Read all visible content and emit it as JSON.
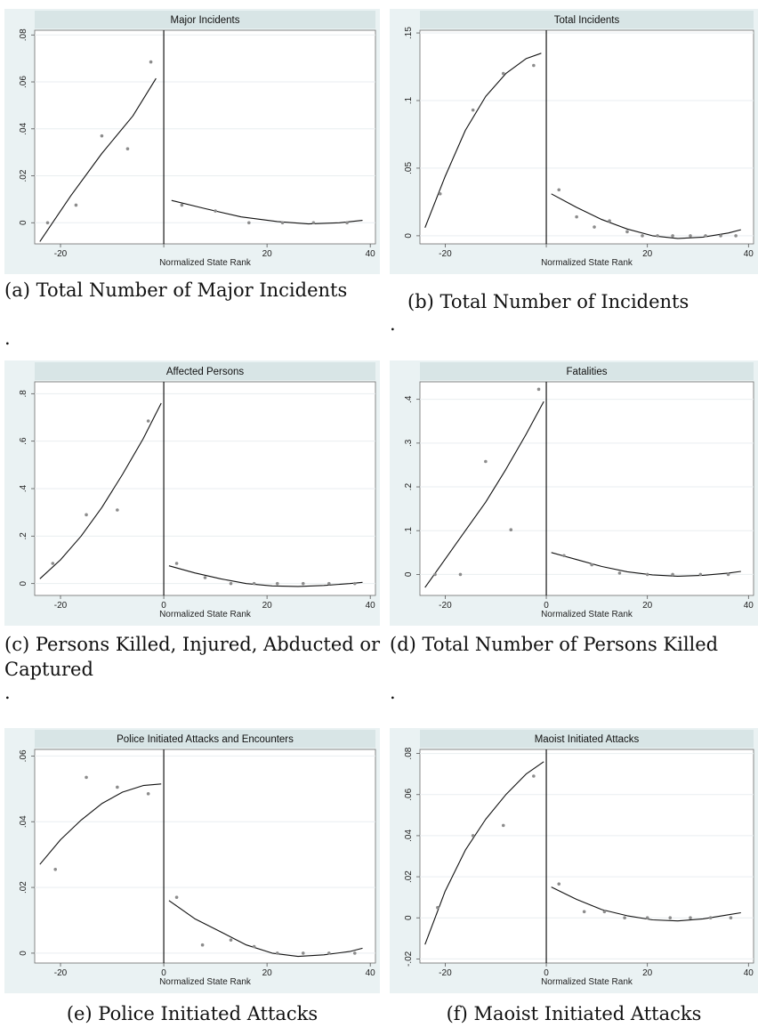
{
  "chart_data": [
    {
      "type": "scatter",
      "title": "Major Incidents",
      "xlabel": "Normalized State Rank",
      "ylabel": "",
      "caption": "(a) Total Number of Major Incidents",
      "note": ".",
      "xlim": [
        -25,
        41
      ],
      "ylim": [
        -0.009,
        0.082
      ],
      "xticks": [
        -20,
        0,
        20,
        40
      ],
      "xtick_labels": [
        "-20",
        "",
        "20",
        "40"
      ],
      "yticks": [
        0,
        0.02,
        0.04,
        0.06,
        0.08
      ],
      "ytick_labels": [
        "0",
        ".02",
        ".04",
        ".06",
        ".08"
      ],
      "cutoff": 0,
      "points": {
        "x": [
          -22.5,
          -17,
          -12,
          -7,
          -2.5,
          3.5,
          10,
          16.5,
          23,
          29,
          35.5
        ],
        "y": [
          0.0,
          0.0075,
          0.037,
          0.0315,
          0.0685,
          0.0075,
          0.005,
          0.0,
          0.0,
          0.0,
          0.0
        ]
      },
      "fit_left": {
        "x": [
          -24,
          -18,
          -12,
          -6,
          -1.5
        ],
        "y": [
          -0.008,
          0.0115,
          0.0295,
          0.0455,
          0.0615
        ]
      },
      "fit_right": {
        "x": [
          1.5,
          8,
          15,
          22,
          28,
          34,
          38.5
        ],
        "y": [
          0.0095,
          0.006,
          0.0025,
          0.0005,
          -0.0005,
          0.0,
          0.001
        ]
      }
    },
    {
      "type": "scatter",
      "title": "Total Incidents",
      "xlabel": "Normalized State Rank",
      "ylabel": "",
      "caption": "(b) Total Number of Incidents",
      "note": ".",
      "xlim": [
        -25,
        41
      ],
      "ylim": [
        -0.006,
        0.152
      ],
      "xticks": [
        -20,
        0,
        20,
        40
      ],
      "xtick_labels": [
        "-20",
        "",
        "20",
        "40"
      ],
      "yticks": [
        0,
        0.05,
        0.1,
        0.15
      ],
      "ytick_labels": [
        "0",
        ".05",
        ".1",
        ".15"
      ],
      "cutoff": 0,
      "points": {
        "x": [
          -21,
          -14.5,
          -8.5,
          -2.5,
          2.5,
          6,
          9.5,
          12.5,
          16,
          19,
          22,
          25,
          28.5,
          31.5,
          34.5,
          37.5
        ],
        "y": [
          0.031,
          0.093,
          0.12,
          0.126,
          0.034,
          0.014,
          0.0065,
          0.011,
          0.003,
          0.0,
          0.0,
          0.0,
          0.0,
          0.0,
          0.0,
          0.0
        ]
      },
      "fit_left": {
        "x": [
          -24,
          -20,
          -16,
          -12,
          -8,
          -4,
          -1
        ],
        "y": [
          0.006,
          0.044,
          0.078,
          0.103,
          0.12,
          0.131,
          0.135
        ]
      },
      "fit_right": {
        "x": [
          1,
          6,
          11,
          16,
          21,
          26,
          31,
          36,
          38.5
        ],
        "y": [
          0.031,
          0.021,
          0.012,
          0.005,
          0.0,
          -0.002,
          -0.001,
          0.002,
          0.0045
        ]
      }
    },
    {
      "type": "scatter",
      "title": "Affected Persons",
      "xlabel": "Normalized State Rank",
      "ylabel": "",
      "caption": "(c) Persons Killed, Injured, Abducted or Captured",
      "note": ".",
      "xlim": [
        -25,
        41
      ],
      "ylim": [
        -0.05,
        0.85
      ],
      "xticks": [
        -20,
        0,
        20,
        40
      ],
      "xtick_labels": [
        "-20",
        "0",
        "20",
        "40"
      ],
      "yticks": [
        0,
        0.2,
        0.4,
        0.6,
        0.8
      ],
      "ytick_labels": [
        "0",
        ".2",
        ".4",
        ".6",
        ".8"
      ],
      "cutoff": 0,
      "points": {
        "x": [
          -21.5,
          -15,
          -9,
          -3,
          2.5,
          8,
          13,
          17.5,
          22,
          27,
          32,
          37
        ],
        "y": [
          0.085,
          0.29,
          0.31,
          0.685,
          0.085,
          0.025,
          0.0,
          0.0,
          0.0,
          0.0,
          0.0,
          0.0
        ]
      },
      "fit_left": {
        "x": [
          -24,
          -20,
          -16,
          -12,
          -8,
          -4,
          -0.5
        ],
        "y": [
          0.02,
          0.1,
          0.2,
          0.32,
          0.46,
          0.61,
          0.76
        ]
      },
      "fit_right": {
        "x": [
          1,
          6,
          11,
          16,
          21,
          26,
          31,
          36,
          38.5
        ],
        "y": [
          0.075,
          0.045,
          0.02,
          0.0,
          -0.01,
          -0.012,
          -0.008,
          0.0,
          0.005
        ]
      }
    },
    {
      "type": "scatter",
      "title": "Fatalities",
      "xlabel": "Normalized State Rank",
      "ylabel": "",
      "caption": "(d) Total Number of Persons Killed",
      "note": ".",
      "xlim": [
        -25,
        41
      ],
      "ylim": [
        -0.048,
        0.44
      ],
      "xticks": [
        -20,
        0,
        20,
        40
      ],
      "xtick_labels": [
        "-20",
        "0",
        "20",
        "40"
      ],
      "yticks": [
        0,
        0.1,
        0.2,
        0.3,
        0.4
      ],
      "ytick_labels": [
        "0",
        ".1",
        ".2",
        ".3",
        ".4"
      ],
      "cutoff": 0,
      "points": {
        "x": [
          -22,
          -17,
          -12,
          -7,
          -1.5,
          3.5,
          9,
          14.5,
          20,
          25,
          30.5,
          36
        ],
        "y": [
          0.0,
          0.0,
          0.258,
          0.102,
          0.423,
          0.043,
          0.022,
          0.003,
          0.0,
          0.0,
          0.0,
          0.0
        ]
      },
      "fit_left": {
        "x": [
          -24,
          -20,
          -16,
          -12,
          -8,
          -4,
          -0.5
        ],
        "y": [
          -0.03,
          0.035,
          0.1,
          0.165,
          0.24,
          0.32,
          0.395
        ]
      },
      "fit_right": {
        "x": [
          1,
          6,
          11,
          16,
          21,
          26,
          31,
          36,
          38.5
        ],
        "y": [
          0.05,
          0.034,
          0.018,
          0.006,
          -0.001,
          -0.004,
          -0.002,
          0.003,
          0.007
        ]
      }
    },
    {
      "type": "scatter",
      "title": "Police Initiated Attacks and Encounters",
      "xlabel": "Normalized State Rank",
      "ylabel": "",
      "caption": "(e) Police Initiated Attacks",
      "xlim": [
        -25,
        41
      ],
      "ylim": [
        -0.003,
        0.062
      ],
      "xticks": [
        -20,
        0,
        20,
        40
      ],
      "xtick_labels": [
        "-20",
        "0",
        "20",
        "40"
      ],
      "yticks": [
        0,
        0.02,
        0.04,
        0.06
      ],
      "ytick_labels": [
        "0",
        ".02",
        ".04",
        ".06"
      ],
      "cutoff": 0,
      "points": {
        "x": [
          -21,
          -15,
          -9,
          -3,
          2.5,
          7.5,
          13,
          17.5,
          22,
          27,
          32,
          37
        ],
        "y": [
          0.0255,
          0.0535,
          0.0505,
          0.0485,
          0.017,
          0.0025,
          0.004,
          0.002,
          0.0,
          0.0,
          0.0,
          0.0
        ]
      },
      "fit_left": {
        "x": [
          -24,
          -20,
          -16,
          -12,
          -8,
          -4,
          -0.5
        ],
        "y": [
          0.027,
          0.0345,
          0.0405,
          0.0455,
          0.049,
          0.051,
          0.0515
        ]
      },
      "fit_right": {
        "x": [
          1,
          6,
          11,
          16,
          21,
          26,
          31,
          36,
          38.5
        ],
        "y": [
          0.016,
          0.0105,
          0.0065,
          0.0025,
          0.0,
          -0.001,
          -0.0005,
          0.0005,
          0.0015
        ]
      }
    },
    {
      "type": "scatter",
      "title": "Maoist Initiated Attacks",
      "xlabel": "Normalized State Rank",
      "ylabel": "",
      "caption": "(f) Maoist Initiated Attacks",
      "xlim": [
        -25,
        41
      ],
      "ylim": [
        -0.022,
        0.082
      ],
      "xticks": [
        -20,
        0,
        20,
        40
      ],
      "xtick_labels": [
        "-20",
        "0",
        "20",
        "40"
      ],
      "yticks": [
        -0.02,
        0,
        0.02,
        0.04,
        0.06,
        0.08
      ],
      "ytick_labels": [
        "-.02",
        "0",
        ".02",
        ".04",
        ".06",
        ".08"
      ],
      "cutoff": 0,
      "points": {
        "x": [
          -21.5,
          -14.5,
          -8.5,
          -2.5,
          2.5,
          7.5,
          11.5,
          15.5,
          20,
          24.5,
          28.5,
          32.5,
          36.5
        ],
        "y": [
          0.005,
          0.04,
          0.045,
          0.069,
          0.0165,
          0.003,
          0.003,
          0.0,
          0.0,
          0.0,
          0.0,
          0.0,
          0.0
        ]
      },
      "fit_left": {
        "x": [
          -24,
          -20,
          -16,
          -12,
          -8,
          -4,
          -0.5
        ],
        "y": [
          -0.013,
          0.013,
          0.033,
          0.048,
          0.06,
          0.07,
          0.076
        ]
      },
      "fit_right": {
        "x": [
          1,
          6,
          11,
          16,
          21,
          26,
          31,
          36,
          38.5
        ],
        "y": [
          0.015,
          0.009,
          0.004,
          0.001,
          -0.001,
          -0.0015,
          -0.0005,
          0.0015,
          0.0025
        ]
      }
    }
  ]
}
